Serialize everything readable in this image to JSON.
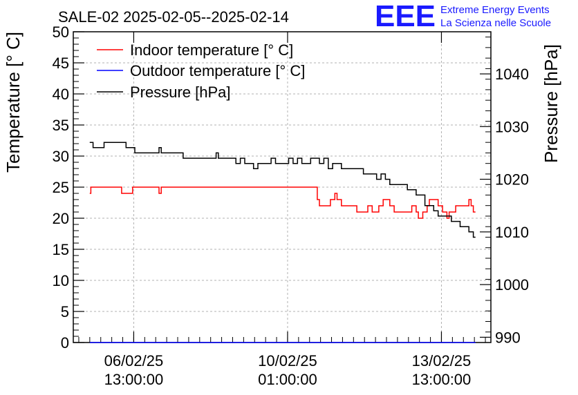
{
  "chart_data": {
    "type": "line",
    "title": "SALE-02 2025-02-05--2025-02-14",
    "ylabel": "Temperature [° C]",
    "y2label": "Pressure [hPa]",
    "ylim": [
      0,
      50
    ],
    "y2lim": [
      989,
      1048
    ],
    "yticks": [
      "0",
      "5",
      "10",
      "15",
      "20",
      "25",
      "30",
      "35",
      "40",
      "45",
      "50"
    ],
    "y2ticks": [
      "990",
      "1000",
      "1010",
      "1020",
      "1030",
      "1040"
    ],
    "xticks": [
      {
        "d": 1.375,
        "line1": "06/02/25",
        "line2": "13:00:00"
      },
      {
        "d": 4.875,
        "line1": "10/02/25",
        "line2": "01:00:00"
      },
      {
        "d": 8.375,
        "line1": "13/02/25",
        "line2": "13:00:00"
      }
    ],
    "xrange_days": [
      0,
      9.5
    ],
    "grid": true,
    "legend_position": "top-left",
    "colors": {
      "indoor": "#ff0000",
      "outdoor": "#0000ff",
      "pressure": "#000000"
    },
    "series": [
      {
        "name": "Indoor temperature [° C]",
        "color": "#ff0000",
        "axis": "left",
        "x": [
          0.375,
          0.4,
          0.45,
          0.5,
          0.55,
          1.0,
          1.1,
          1.12,
          1.3,
          1.35,
          1.4,
          1.9,
          1.95,
          2.0,
          5.5,
          5.55,
          5.6,
          5.75,
          5.85,
          5.9,
          5.95,
          6.0,
          6.1,
          6.2,
          6.3,
          6.45,
          6.6,
          6.7,
          6.8,
          6.95,
          7.05,
          7.15,
          7.2,
          7.3,
          7.4,
          7.5,
          7.6,
          7.7,
          7.8,
          7.85,
          7.95,
          8.05,
          8.1,
          8.3,
          8.4,
          8.5,
          8.55,
          8.6,
          8.7,
          8.8,
          8.9,
          9.0,
          9.05,
          9.1,
          9.15
        ],
        "y": [
          24,
          25,
          25,
          25,
          25,
          25,
          24,
          24,
          24,
          25,
          25,
          25,
          24,
          25,
          25,
          23,
          22,
          22,
          23,
          23,
          24,
          23,
          22,
          22,
          22,
          21,
          21,
          22,
          21,
          22,
          23,
          23,
          22,
          21,
          21,
          21,
          21,
          22,
          21,
          20,
          21,
          22,
          23,
          22,
          21,
          20,
          21,
          21,
          22,
          22,
          22,
          23,
          22,
          21,
          21
        ]
      },
      {
        "name": "Outdoor temperature [° C]",
        "color": "#0000ff",
        "axis": "left",
        "x": [
          0.375,
          9.15
        ],
        "y": [
          0,
          0
        ]
      },
      {
        "name": "Pressure [hPa]",
        "color": "#000000",
        "axis": "right",
        "x": [
          0.375,
          0.45,
          0.55,
          0.7,
          0.8,
          0.9,
          1.2,
          1.3,
          1.4,
          1.45,
          1.5,
          1.8,
          1.9,
          1.95,
          2.0,
          2.5,
          2.8,
          2.9,
          3.0,
          3.2,
          3.25,
          3.3,
          3.4,
          3.5,
          3.6,
          3.7,
          3.75,
          3.8,
          3.9,
          4.0,
          4.1,
          4.2,
          4.3,
          4.4,
          4.5,
          4.6,
          4.7,
          4.8,
          4.9,
          5.0,
          5.1,
          5.2,
          5.3,
          5.4,
          5.5,
          5.6,
          5.7,
          5.8,
          5.9,
          6.0,
          6.1,
          6.2,
          6.4,
          6.6,
          6.8,
          6.9,
          7.0,
          7.1,
          7.2,
          7.3,
          7.4,
          7.6,
          7.8,
          8.0,
          8.1,
          8.2,
          8.3,
          8.4,
          8.5,
          8.6,
          8.7,
          8.8,
          8.9,
          9.0,
          9.05,
          9.1,
          9.15
        ],
        "y": [
          1027,
          1026,
          1026,
          1027,
          1027,
          1027,
          1026,
          1026,
          1025,
          1025,
          1025,
          1025,
          1025,
          1026,
          1025,
          1024,
          1024,
          1024,
          1024,
          1024,
          1025,
          1024,
          1024,
          1024,
          1024,
          1023,
          1023,
          1024,
          1023,
          1023,
          1022,
          1023,
          1023,
          1023,
          1024,
          1023,
          1023,
          1023,
          1024,
          1023,
          1024,
          1023,
          1023,
          1024,
          1024,
          1023,
          1024,
          1022,
          1023,
          1023,
          1022,
          1022,
          1022,
          1021,
          1021,
          1020,
          1021,
          1020,
          1019,
          1019,
          1019,
          1018,
          1017,
          1015,
          1015,
          1014,
          1013,
          1013,
          1013,
          1012,
          1012,
          1011,
          1011,
          1010,
          1010,
          1009,
          1009
        ]
      }
    ]
  },
  "logo": {
    "mark": "EEE",
    "line1": "Extreme Energy Events",
    "line2": "La Scienza nelle Scuole",
    "color": "#1a1aff"
  }
}
